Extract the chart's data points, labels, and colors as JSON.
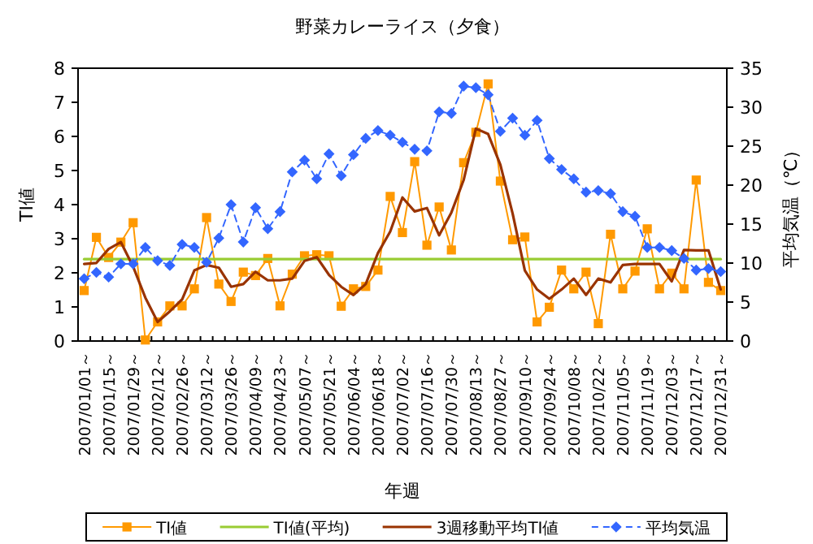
{
  "chart_data": {
    "type": "line",
    "title": "野菜カレーライス（夕食）",
    "xlabel": "年週",
    "ylabel": "TI値",
    "y2label": "平均気温（℃）",
    "categories": [
      "2007/01/01～",
      null,
      "2007/01/15～",
      null,
      "2007/01/29～",
      null,
      "2007/02/12～",
      null,
      "2007/02/26～",
      null,
      "2007/03/12～",
      null,
      "2007/03/26～",
      null,
      "2007/04/09～",
      null,
      "2007/04/23～",
      null,
      "2007/05/07～",
      null,
      "2007/05/21～",
      null,
      "2007/06/04～",
      null,
      "2007/06/18～",
      null,
      "2007/07/02～",
      null,
      "2007/07/16～",
      null,
      "2007/07/30～",
      null,
      "2007/08/13～",
      null,
      "2007/08/27～",
      null,
      "2007/09/10～",
      null,
      "2007/09/24～",
      null,
      "2007/10/08～",
      null,
      "2007/10/22～",
      null,
      "2007/11/05～",
      null,
      "2007/11/19～",
      null,
      "2007/12/03～",
      null,
      "2007/12/17～",
      null,
      "2007/12/31～"
    ],
    "series": [
      {
        "name": "TI値",
        "color": "#ff9900",
        "marker": "square",
        "line_style": "solid",
        "values": [
          1.48,
          3.04,
          2.45,
          2.9,
          3.47,
          0.03,
          0.56,
          1.03,
          1.03,
          1.53,
          3.62,
          1.67,
          1.16,
          2.02,
          1.92,
          2.42,
          1.03,
          1.96,
          2.5,
          2.53,
          2.5,
          1.02,
          1.53,
          1.6,
          2.08,
          4.24,
          3.18,
          5.26,
          2.81,
          3.93,
          2.67,
          5.23,
          6.12,
          7.54,
          4.69,
          2.97,
          3.05,
          0.56,
          0.99,
          2.08,
          1.53,
          2.02,
          0.51,
          3.13,
          1.53,
          2.05,
          3.29,
          1.53,
          1.99,
          1.53,
          4.72,
          1.72,
          1.48
        ]
      },
      {
        "name": "TI値(平均)",
        "color": "#99cc33",
        "marker": "none",
        "line_style": "solid",
        "values": [
          2.4,
          2.4,
          2.4,
          2.4,
          2.4,
          2.4,
          2.4,
          2.4,
          2.4,
          2.4,
          2.4,
          2.4,
          2.4,
          2.4,
          2.4,
          2.4,
          2.4,
          2.4,
          2.4,
          2.4,
          2.4,
          2.4,
          2.4,
          2.4,
          2.4,
          2.4,
          2.4,
          2.4,
          2.4,
          2.4,
          2.4,
          2.4,
          2.4,
          2.4,
          2.4,
          2.4,
          2.4,
          2.4,
          2.4,
          2.4,
          2.4,
          2.4,
          2.4,
          2.4,
          2.4,
          2.4,
          2.4,
          2.4,
          2.4,
          2.4,
          2.4,
          2.4,
          2.4
        ]
      },
      {
        "name": "3週移動平均TI値",
        "color": "#993300",
        "marker": "none",
        "line_style": "solid",
        "values": [
          2.26,
          2.29,
          2.7,
          2.9,
          2.18,
          1.27,
          0.56,
          0.87,
          1.22,
          2.07,
          2.23,
          2.15,
          1.59,
          1.67,
          2.03,
          1.78,
          1.78,
          1.83,
          2.35,
          2.46,
          1.94,
          1.59,
          1.35,
          1.67,
          2.58,
          3.21,
          4.21,
          3.8,
          3.9,
          3.1,
          3.77,
          4.72,
          6.23,
          6.07,
          5.17,
          3.74,
          2.07,
          1.51,
          1.24,
          1.51,
          1.83,
          1.35,
          1.83,
          1.72,
          2.23,
          2.26,
          2.26,
          2.26,
          1.75,
          2.67,
          2.66,
          2.66,
          1.51
        ]
      },
      {
        "name": "平均気温",
        "color": "#3366ff",
        "marker": "diamond",
        "line_style": "dashed",
        "axis": "y2",
        "values": [
          8.0,
          8.8,
          8.2,
          9.9,
          9.9,
          12.0,
          10.3,
          9.7,
          12.4,
          12.0,
          10.1,
          13.2,
          17.5,
          12.7,
          17.1,
          14.4,
          16.6,
          21.7,
          23.2,
          20.8,
          24.0,
          21.2,
          23.9,
          26.0,
          27.0,
          26.4,
          25.5,
          24.6,
          24.4,
          29.4,
          29.2,
          32.7,
          32.5,
          31.6,
          26.9,
          28.6,
          26.4,
          28.3,
          23.4,
          22.0,
          20.8,
          19.1,
          19.3,
          18.9,
          16.6,
          16.0,
          12.0,
          12.0,
          11.6,
          10.6,
          9.1,
          9.3,
          8.9
        ]
      }
    ],
    "ylim": [
      0,
      8
    ],
    "yticks": [
      0,
      1,
      2,
      3,
      4,
      5,
      6,
      7,
      8
    ],
    "y2lim": [
      0,
      35
    ],
    "y2ticks": [
      0,
      5,
      10,
      15,
      20,
      25,
      30,
      35
    ],
    "grid": false,
    "legend": "bottom"
  }
}
